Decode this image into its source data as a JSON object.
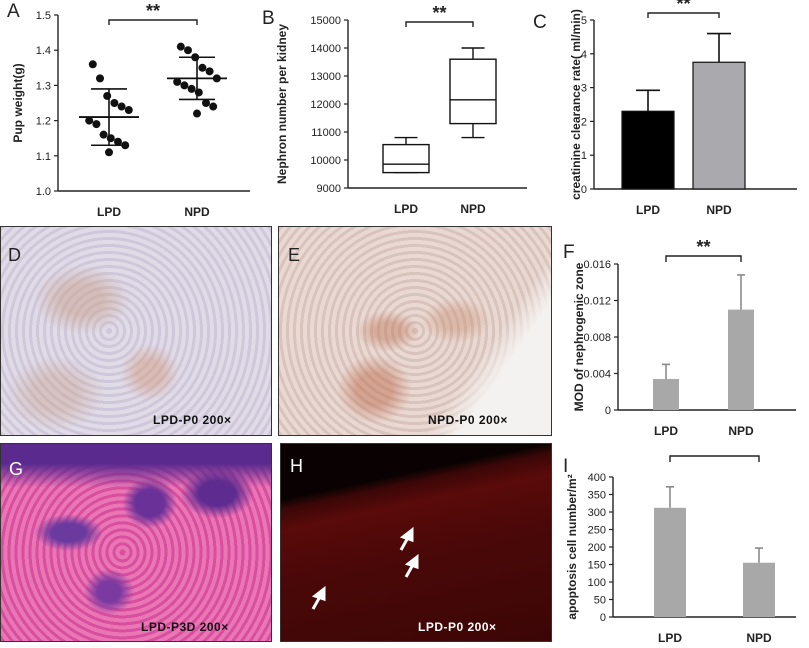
{
  "panels": {
    "A": "A",
    "B": "B",
    "C": "C",
    "D": "D",
    "E": "E",
    "F": "F",
    "G": "G",
    "H": "H",
    "I": "I"
  },
  "sig": "**",
  "micrographs": {
    "D": {
      "caption": "LPD-P0 200×",
      "bg": "#d9d3e2"
    },
    "E": {
      "caption": "NPD-P0 200×",
      "bg": "#e4d2cc"
    },
    "G": {
      "caption": "LPD-P3D 200×",
      "bg": "#d24a9c"
    },
    "H": {
      "caption": "LPD-P0 200×",
      "bg": "#0a0202"
    }
  },
  "colors": {
    "lpd_bar_C": "#000000",
    "npd_bar_C": "#a9a9ae",
    "bar_gray": "#a8a8a8"
  },
  "chart_data": [
    {
      "id": "A",
      "type": "scatter",
      "ylabel": "Pup weight(g)",
      "categories": [
        "LPD",
        "NPD"
      ],
      "ylim": [
        1.0,
        1.5
      ],
      "yticks": [
        "1.0",
        "1.1",
        "1.2",
        "1.3",
        "1.4",
        "1.5"
      ],
      "series": [
        {
          "category": "LPD",
          "points": [
            1.36,
            1.32,
            1.27,
            1.25,
            1.24,
            1.23,
            1.2,
            1.19,
            1.16,
            1.15,
            1.14,
            1.13,
            1.11
          ],
          "mean": 1.21,
          "sd_low": 1.13,
          "sd_high": 1.29
        },
        {
          "category": "NPD",
          "points": [
            1.41,
            1.4,
            1.38,
            1.35,
            1.34,
            1.32,
            1.31,
            1.3,
            1.29,
            1.28,
            1.25,
            1.24,
            1.22
          ],
          "mean": 1.32,
          "sd_low": 1.26,
          "sd_high": 1.38
        }
      ],
      "significance": "**"
    },
    {
      "id": "B",
      "type": "box",
      "ylabel": "Nephron number per kidney",
      "categories": [
        "LPD",
        "NPD"
      ],
      "ylim": [
        9000,
        15000
      ],
      "yticks": [
        "9000",
        "10000",
        "11000",
        "12000",
        "13000",
        "14000",
        "15000"
      ],
      "series": [
        {
          "category": "LPD",
          "min": 9550,
          "q1": 9550,
          "median": 9850,
          "q3": 10550,
          "max": 10800
        },
        {
          "category": "NPD",
          "min": 10800,
          "q1": 11300,
          "median": 12150,
          "q3": 13600,
          "max": 14000
        }
      ],
      "significance": "**"
    },
    {
      "id": "C",
      "type": "bar",
      "ylabel": "creatinine clearance rate( ml/min)",
      "categories": [
        "LPD",
        "NPD"
      ],
      "values": [
        2.3,
        3.75
      ],
      "errors": [
        0.62,
        0.85
      ],
      "ylim": [
        0,
        5
      ],
      "yticks": [
        "0",
        "1",
        "2",
        "3",
        "4",
        "5"
      ],
      "significance": "**"
    },
    {
      "id": "F",
      "type": "bar",
      "ylabel": "MOD of nephrogenic zone",
      "categories": [
        "LPD",
        "NPD"
      ],
      "values": [
        0.0034,
        0.011
      ],
      "errors": [
        0.0016,
        0.0038
      ],
      "ylim": [
        0,
        0.016
      ],
      "yticks": [
        "0",
        "0.004",
        "0.008",
        "0.012",
        "0.016"
      ],
      "significance": "**"
    },
    {
      "id": "I",
      "type": "bar",
      "ylabel": "apoptosis cell number/m²",
      "categories": [
        "LPD",
        "NPD"
      ],
      "values": [
        312,
        155
      ],
      "errors": [
        60,
        42
      ],
      "ylim": [
        0,
        400
      ],
      "yticks": [
        "0",
        "50",
        "100",
        "150",
        "200",
        "250",
        "300",
        "350",
        "400"
      ],
      "significance": "**"
    }
  ]
}
